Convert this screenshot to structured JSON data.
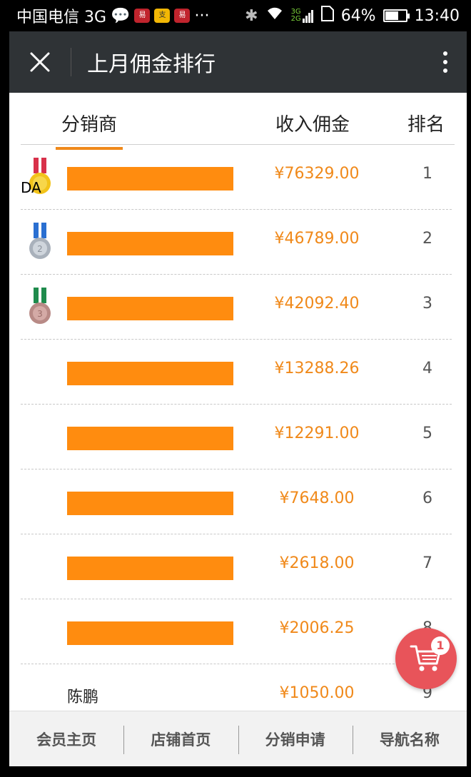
{
  "status_bar": {
    "carrier": "中国电信 3G",
    "network_label_top": "3G",
    "network_label_bottom": "2G",
    "battery": "64%",
    "battery_level": 0.64,
    "time": "13:40"
  },
  "header": {
    "title": "上月佣金排行"
  },
  "table": {
    "headers": [
      "分销商",
      "收入佣金",
      "排名"
    ],
    "rows": [
      {
        "name": "",
        "amount": "¥76329.00",
        "rank": "1",
        "medal": "gold",
        "tag": "DA",
        "redacted": true
      },
      {
        "name": "",
        "amount": "¥46789.00",
        "rank": "2",
        "medal": "silver",
        "redacted": true
      },
      {
        "name": "",
        "amount": "¥42092.40",
        "rank": "3",
        "medal": "bronze",
        "redacted": true
      },
      {
        "name": "",
        "amount": "¥13288.26",
        "rank": "4",
        "redacted": true
      },
      {
        "name": "",
        "amount": "¥12291.00",
        "rank": "5",
        "redacted": true
      },
      {
        "name": "",
        "amount": "¥7648.00",
        "rank": "6",
        "redacted": true
      },
      {
        "name": "",
        "amount": "¥2618.00",
        "rank": "7",
        "redacted": true
      },
      {
        "name": "",
        "amount": "¥2006.25",
        "rank": "8",
        "redacted": true
      },
      {
        "name": "陈鹏",
        "amount": "¥1050.00",
        "rank": "9",
        "redacted": false
      }
    ]
  },
  "cart": {
    "count": "1"
  },
  "bottom_nav": [
    "会员主页",
    "店铺首页",
    "分销申请",
    "导航名称"
  ],
  "colors": {
    "accent": "#f0891a",
    "header_bg": "#2f3336",
    "redaction": "#ff8c0f",
    "cart_bg": "#e8545a"
  },
  "icons": {
    "close": "close-icon",
    "more": "more-vertical-icon",
    "cart": "cart-icon",
    "medals": [
      "gold-medal-icon",
      "silver-medal-icon",
      "bronze-medal-icon"
    ]
  }
}
